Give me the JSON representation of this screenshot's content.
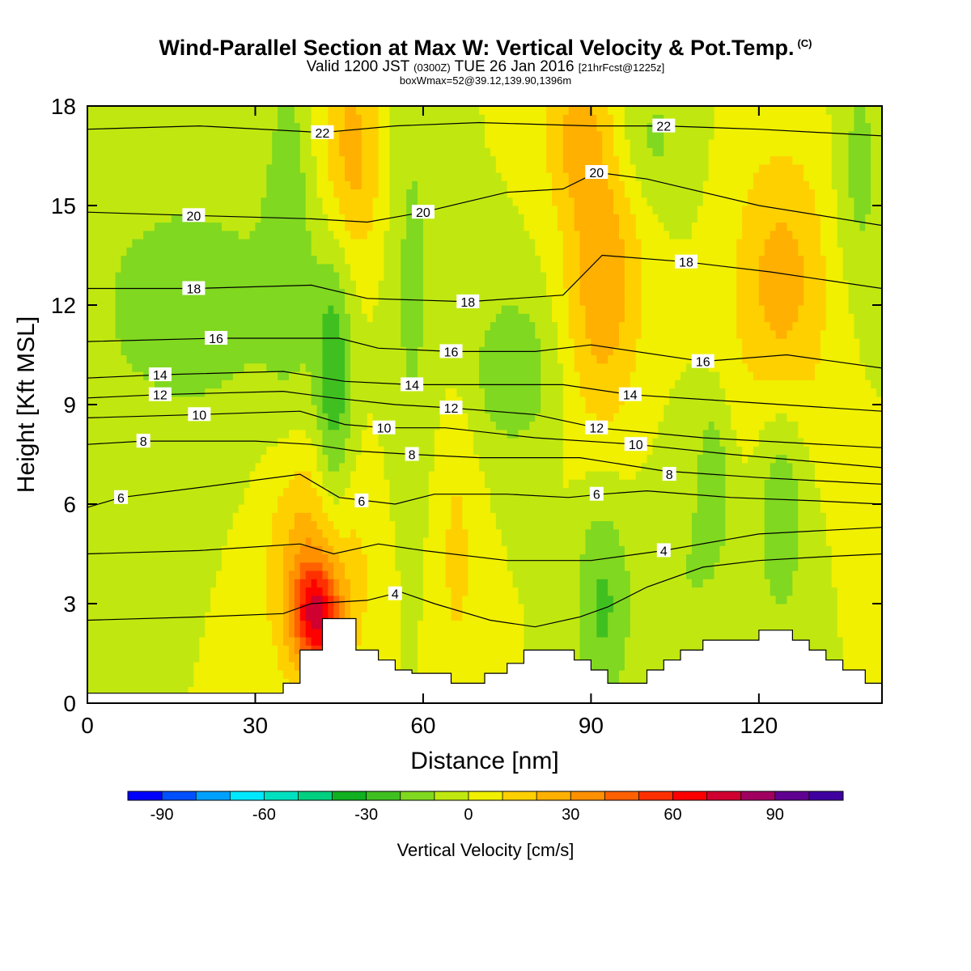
{
  "header": {
    "title": "Wind-Parallel Section at Max W: Vertical Velocity & Pot.Temp.",
    "copyright_mark": "(C)",
    "valid_prefix": "Valid 1200 JST",
    "valid_utc": "(0300Z)",
    "valid_date": "TUE 26 Jan 2016",
    "valid_fcst": "[21hrFcst@1225z]",
    "box_wmax": "boxWmax=52@39.12,139.90,1396m"
  },
  "chart_data": {
    "type": "heatmap",
    "title": "Wind-Parallel Section at Max W: Vertical Velocity & Pot.Temp.",
    "xlabel": "Distance [nm]",
    "ylabel": "Height [Kft MSL]",
    "xlim": [
      0,
      142
    ],
    "ylim": [
      0,
      18
    ],
    "x_ticks": [
      "0",
      "30",
      "60",
      "90",
      "120"
    ],
    "y_ticks": [
      "0",
      "3",
      "6",
      "9",
      "12",
      "15",
      "18"
    ],
    "background_value": 0,
    "w_features_cm_s": [
      {
        "x": 41,
        "y": 2.6,
        "w": 55,
        "sx": 3,
        "sy": 1.1
      },
      {
        "x": 41,
        "y": 4.2,
        "w": 30,
        "sx": 6,
        "sy": 2.6
      },
      {
        "x": 47,
        "y": 16.5,
        "w": 25,
        "sx": 4,
        "sy": 2.5
      },
      {
        "x": 92,
        "y": 13,
        "w": 28,
        "sx": 5,
        "sy": 3.5
      },
      {
        "x": 124,
        "y": 12.5,
        "w": 25,
        "sx": 6,
        "sy": 3.0
      },
      {
        "x": 87,
        "y": 17.2,
        "w": 18,
        "sx": 4,
        "sy": 1.5
      },
      {
        "x": 66,
        "y": 4.5,
        "w": 12,
        "sx": 3,
        "sy": 3.5
      },
      {
        "x": 44,
        "y": 9,
        "w": -28,
        "sx": 2.5,
        "sy": 3.5
      },
      {
        "x": 92,
        "y": 3,
        "w": -22,
        "sx": 3.5,
        "sy": 2.5
      },
      {
        "x": 76,
        "y": 10,
        "w": -18,
        "sx": 6,
        "sy": 1.8
      },
      {
        "x": 124,
        "y": 6,
        "w": -20,
        "sx": 3,
        "sy": 2.5
      },
      {
        "x": 112,
        "y": 7,
        "w": -15,
        "sx": 2,
        "sy": 1.5
      },
      {
        "x": 18,
        "y": 12,
        "w": -15,
        "sx": 15,
        "sy": 3
      },
      {
        "x": 36,
        "y": 15,
        "w": -14,
        "sx": 3,
        "sy": 4
      },
      {
        "x": 138,
        "y": 16,
        "w": -14,
        "sx": 3,
        "sy": 2.5
      },
      {
        "x": 100,
        "y": 17,
        "w": -14,
        "sx": 5,
        "sy": 1.5
      },
      {
        "x": 58,
        "y": 13,
        "w": -12,
        "sx": 3,
        "sy": 5
      },
      {
        "x": 108,
        "y": 4,
        "w": -10,
        "sx": 6,
        "sy": 2.5
      }
    ],
    "theta_contours": [
      {
        "label": "4",
        "label_pos": [
          55,
          3.3
        ],
        "pts": [
          [
            0,
            2.5
          ],
          [
            20,
            2.6
          ],
          [
            35,
            2.7
          ],
          [
            40,
            3.0
          ],
          [
            50,
            3.1
          ],
          [
            56,
            3.35
          ],
          [
            62,
            3.0
          ],
          [
            72,
            2.5
          ],
          [
            80,
            2.3
          ],
          [
            88,
            2.6
          ],
          [
            93,
            2.9
          ],
          [
            100,
            3.5
          ],
          [
            110,
            4.1
          ],
          [
            120,
            4.3
          ],
          [
            130,
            4.4
          ],
          [
            142,
            4.5
          ]
        ]
      },
      {
        "label": "6",
        "label_pos": [
          6,
          6.2
        ],
        "pts": [
          [
            0,
            5.9
          ],
          [
            6,
            6.2
          ],
          [
            20,
            6.5
          ],
          [
            38,
            6.9
          ],
          [
            45,
            6.2
          ],
          [
            55,
            6.0
          ],
          [
            62,
            6.3
          ],
          [
            75,
            6.3
          ],
          [
            86,
            6.2
          ],
          [
            92,
            6.3
          ],
          [
            100,
            6.4
          ],
          [
            115,
            6.2
          ],
          [
            130,
            6.1
          ],
          [
            142,
            6.0
          ]
        ]
      },
      {
        "label": "6",
        "label_pos": [
          49,
          6.1
        ],
        "pts": []
      },
      {
        "label": "6",
        "label_pos": [
          91,
          6.3
        ],
        "pts": []
      },
      {
        "label": "4",
        "label_pos": [
          103,
          4.6
        ],
        "pts": [
          [
            0,
            4.5
          ],
          [
            20,
            4.6
          ],
          [
            38,
            4.8
          ],
          [
            44,
            4.5
          ],
          [
            52,
            4.8
          ],
          [
            60,
            4.6
          ],
          [
            75,
            4.3
          ],
          [
            90,
            4.3
          ],
          [
            103,
            4.6
          ],
          [
            120,
            5.1
          ],
          [
            142,
            5.3
          ]
        ]
      },
      {
        "label": "8",
        "label_pos": [
          10,
          7.9
        ],
        "pts": [
          [
            0,
            7.8
          ],
          [
            10,
            7.9
          ],
          [
            30,
            7.9
          ],
          [
            40,
            7.8
          ],
          [
            48,
            7.6
          ],
          [
            58,
            7.5
          ],
          [
            70,
            7.4
          ],
          [
            88,
            7.4
          ],
          [
            103,
            7.0
          ],
          [
            120,
            6.8
          ],
          [
            142,
            6.6
          ]
        ]
      },
      {
        "label": "8",
        "label_pos": [
          58,
          7.5
        ],
        "pts": []
      },
      {
        "label": "8",
        "label_pos": [
          104,
          6.9
        ],
        "pts": []
      },
      {
        "label": "10",
        "label_pos": [
          20,
          8.7
        ],
        "pts": [
          [
            0,
            8.6
          ],
          [
            20,
            8.7
          ],
          [
            38,
            8.8
          ],
          [
            46,
            8.4
          ],
          [
            53,
            8.3
          ],
          [
            64,
            8.3
          ],
          [
            80,
            8.0
          ],
          [
            98,
            7.8
          ],
          [
            115,
            7.5
          ],
          [
            142,
            7.1
          ]
        ]
      },
      {
        "label": "10",
        "label_pos": [
          53,
          8.3
        ],
        "pts": []
      },
      {
        "label": "10",
        "label_pos": [
          98,
          7.8
        ],
        "pts": []
      },
      {
        "label": "12",
        "label_pos": [
          13,
          9.3
        ],
        "pts": [
          [
            0,
            9.2
          ],
          [
            13,
            9.3
          ],
          [
            35,
            9.4
          ],
          [
            44,
            9.2
          ],
          [
            55,
            9.0
          ],
          [
            65,
            8.9
          ],
          [
            80,
            8.7
          ],
          [
            91,
            8.3
          ],
          [
            110,
            8.0
          ],
          [
            142,
            7.7
          ]
        ]
      },
      {
        "label": "12",
        "label_pos": [
          65,
          8.9
        ],
        "pts": []
      },
      {
        "label": "12",
        "label_pos": [
          91,
          8.3
        ],
        "pts": []
      },
      {
        "label": "14",
        "label_pos": [
          13,
          9.9
        ],
        "pts": [
          [
            0,
            9.8
          ],
          [
            13,
            9.9
          ],
          [
            35,
            10.0
          ],
          [
            46,
            9.7
          ],
          [
            58,
            9.6
          ],
          [
            70,
            9.6
          ],
          [
            85,
            9.6
          ],
          [
            97,
            9.3
          ],
          [
            115,
            9.1
          ],
          [
            142,
            8.8
          ]
        ]
      },
      {
        "label": "14",
        "label_pos": [
          58,
          9.6
        ],
        "pts": []
      },
      {
        "label": "14",
        "label_pos": [
          97,
          9.3
        ],
        "pts": []
      },
      {
        "label": "16",
        "label_pos": [
          23,
          11.0
        ],
        "pts": [
          [
            0,
            10.9
          ],
          [
            23,
            11.0
          ],
          [
            45,
            11.0
          ],
          [
            52,
            10.7
          ],
          [
            65,
            10.6
          ],
          [
            80,
            10.6
          ],
          [
            90,
            10.8
          ],
          [
            110,
            10.3
          ],
          [
            125,
            10.5
          ],
          [
            142,
            10.1
          ]
        ]
      },
      {
        "label": "16",
        "label_pos": [
          65,
          10.6
        ],
        "pts": []
      },
      {
        "label": "16",
        "label_pos": [
          110,
          10.3
        ],
        "pts": []
      },
      {
        "label": "18",
        "label_pos": [
          19,
          12.5
        ],
        "pts": [
          [
            0,
            12.5
          ],
          [
            19,
            12.5
          ],
          [
            40,
            12.6
          ],
          [
            50,
            12.2
          ],
          [
            68,
            12.1
          ],
          [
            85,
            12.3
          ],
          [
            92,
            13.5
          ],
          [
            107,
            13.3
          ],
          [
            122,
            13.0
          ],
          [
            142,
            12.5
          ]
        ]
      },
      {
        "label": "18",
        "label_pos": [
          68,
          12.1
        ],
        "pts": []
      },
      {
        "label": "18",
        "label_pos": [
          107,
          13.3
        ],
        "pts": []
      },
      {
        "label": "20",
        "label_pos": [
          19,
          14.7
        ],
        "pts": [
          [
            0,
            14.8
          ],
          [
            19,
            14.7
          ],
          [
            40,
            14.6
          ],
          [
            50,
            14.5
          ],
          [
            60,
            14.8
          ],
          [
            75,
            15.4
          ],
          [
            85,
            15.5
          ],
          [
            91,
            16.0
          ],
          [
            100,
            15.8
          ],
          [
            120,
            15.0
          ],
          [
            142,
            14.4
          ]
        ]
      },
      {
        "label": "20",
        "label_pos": [
          60,
          14.8
        ],
        "pts": []
      },
      {
        "label": "20",
        "label_pos": [
          91,
          16.0
        ],
        "pts": []
      },
      {
        "label": "22",
        "label_pos": [
          42,
          17.2
        ],
        "pts": [
          [
            0,
            17.3
          ],
          [
            20,
            17.4
          ],
          [
            42,
            17.2
          ],
          [
            55,
            17.4
          ],
          [
            70,
            17.5
          ],
          [
            90,
            17.4
          ],
          [
            103,
            17.4
          ],
          [
            120,
            17.3
          ],
          [
            142,
            17.1
          ]
        ]
      },
      {
        "label": "22",
        "label_pos": [
          103,
          17.4
        ],
        "pts": []
      }
    ],
    "terrain_kft": [
      [
        0,
        0.3
      ],
      [
        35,
        0.3
      ],
      [
        35,
        0.6
      ],
      [
        38,
        0.6
      ],
      [
        38,
        1.6
      ],
      [
        42,
        1.6
      ],
      [
        42,
        2.55
      ],
      [
        48,
        2.55
      ],
      [
        48,
        1.6
      ],
      [
        52,
        1.6
      ],
      [
        52,
        1.3
      ],
      [
        55,
        1.3
      ],
      [
        55,
        1.0
      ],
      [
        58,
        1.0
      ],
      [
        58,
        0.9
      ],
      [
        65,
        0.9
      ],
      [
        65,
        0.6
      ],
      [
        71,
        0.6
      ],
      [
        71,
        0.9
      ],
      [
        75,
        0.9
      ],
      [
        75,
        1.2
      ],
      [
        78,
        1.2
      ],
      [
        78,
        1.6
      ],
      [
        87,
        1.6
      ],
      [
        87,
        1.3
      ],
      [
        90,
        1.3
      ],
      [
        90,
        1.0
      ],
      [
        93,
        1.0
      ],
      [
        93,
        0.6
      ],
      [
        100,
        0.6
      ],
      [
        100,
        1.0
      ],
      [
        103,
        1.0
      ],
      [
        103,
        1.3
      ],
      [
        106,
        1.3
      ],
      [
        106,
        1.6
      ],
      [
        110,
        1.6
      ],
      [
        110,
        1.9
      ],
      [
        120,
        1.9
      ],
      [
        120,
        2.2
      ],
      [
        126,
        2.2
      ],
      [
        126,
        1.9
      ],
      [
        129,
        1.9
      ],
      [
        129,
        1.6
      ],
      [
        132,
        1.6
      ],
      [
        132,
        1.3
      ],
      [
        135,
        1.3
      ],
      [
        135,
        1.0
      ],
      [
        139,
        1.0
      ],
      [
        139,
        0.6
      ],
      [
        142,
        0.6
      ]
    ],
    "colorbar": {
      "label": "Vertical Velocity [cm/s]",
      "tick_labels": [
        "-90",
        "-60",
        "-30",
        "0",
        "30",
        "60",
        "90"
      ],
      "tick_values": [
        -90,
        -60,
        -30,
        0,
        30,
        60,
        90
      ],
      "range": [
        -100,
        110
      ],
      "step": 10,
      "colors": [
        "#0000ff",
        "#0050ff",
        "#00a0ff",
        "#00e8ff",
        "#00e0c0",
        "#00d080",
        "#10b020",
        "#40c020",
        "#80d820",
        "#c0e810",
        "#f0f000",
        "#ffd000",
        "#ffb000",
        "#ff9000",
        "#ff6000",
        "#ff3000",
        "#ff0000",
        "#d00030",
        "#a00060",
        "#600090",
        "#4000a0"
      ]
    }
  }
}
